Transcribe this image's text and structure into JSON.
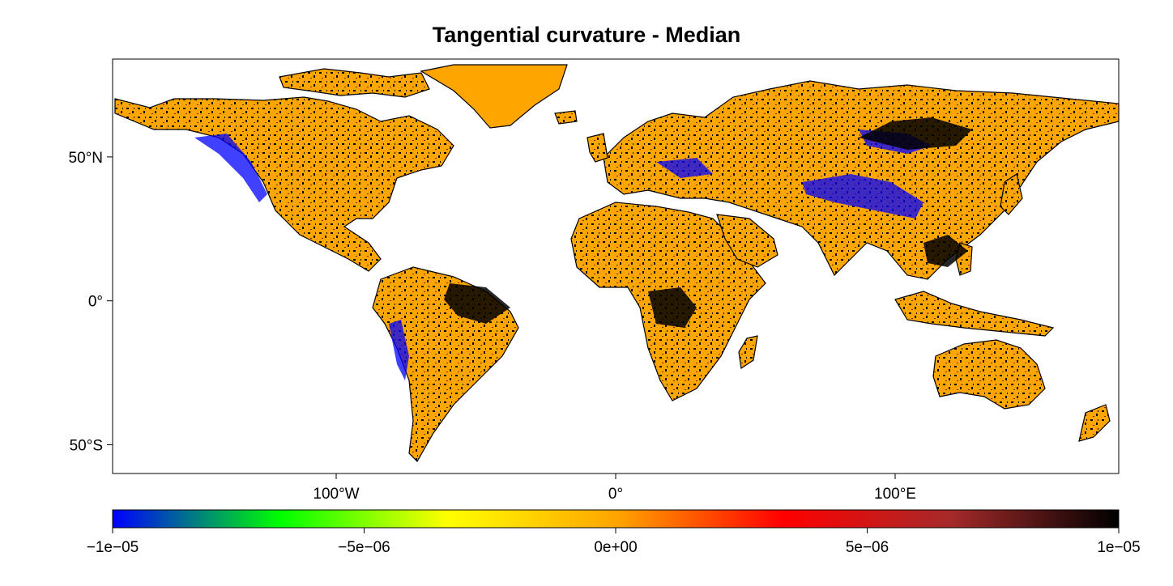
{
  "title": "Tangential curvature - Median",
  "map": {
    "lat_ticks": [
      {
        "label": "50°N",
        "value": 50
      },
      {
        "label": "0°",
        "value": 0
      },
      {
        "label": "50°S",
        "value": -50
      }
    ],
    "lon_ticks": [
      {
        "label": "100°W",
        "value": -100
      },
      {
        "label": "0°",
        "value": 0
      },
      {
        "label": "100°E",
        "value": 100
      }
    ],
    "lon_range": [
      -180,
      180
    ],
    "lat_range": [
      -60,
      84
    ],
    "land_base_color": "#ffa500",
    "high_value_color": "#000000",
    "low_value_color": "#0000ff",
    "ocean_color": "#ffffff"
  },
  "colorbar": {
    "range": [
      -1e-05,
      1e-05
    ],
    "ticks": [
      {
        "label": "−1e−05",
        "value": -1e-05
      },
      {
        "label": "−5e−06",
        "value": -5e-06
      },
      {
        "label": "0e+00",
        "value": 0
      },
      {
        "label": "5e−06",
        "value": 5e-06
      },
      {
        "label": "1e−05",
        "value": 1e-05
      }
    ],
    "colors": [
      "#0000ff",
      "#00ff00",
      "#ffff00",
      "#ffa500",
      "#ff0000",
      "#a52a2a",
      "#000000"
    ]
  }
}
